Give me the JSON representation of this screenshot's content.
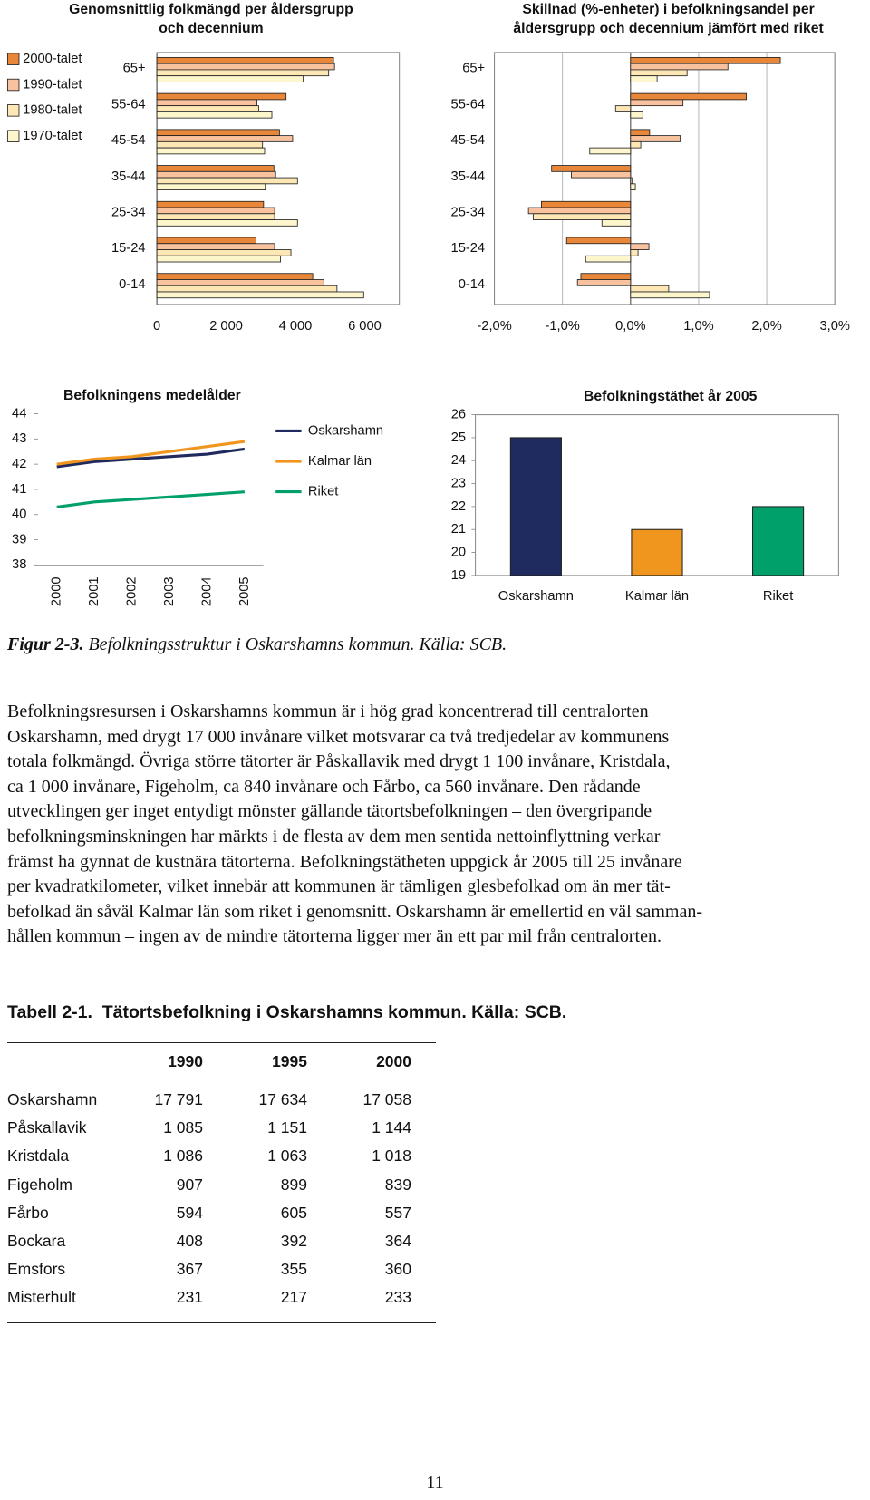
{
  "chart_data": [
    {
      "type": "bar",
      "orientation": "horizontal",
      "title": [
        "Genomsnittlig folkmängd per åldersgrupp",
        "och decennium"
      ],
      "categories": [
        "65+",
        "55-64",
        "45-54",
        "35-44",
        "25-34",
        "15-24",
        "0-14"
      ],
      "series": [
        {
          "name": "2000-talet",
          "color": "#e8873a",
          "values": [
            5100,
            3730,
            3540,
            3380,
            3080,
            2860,
            4500
          ]
        },
        {
          "name": "1990-talet",
          "color": "#f8c29e",
          "values": [
            5130,
            2890,
            3920,
            3430,
            3400,
            3400,
            4820
          ]
        },
        {
          "name": "1980-talet",
          "color": "#fde7b5",
          "values": [
            4960,
            2940,
            3050,
            4060,
            3400,
            3870,
            5200
          ]
        },
        {
          "name": "1970-talet",
          "color": "#fdf5cc",
          "values": [
            4220,
            3320,
            3110,
            3130,
            4060,
            3570,
            5970
          ]
        }
      ],
      "xlim": [
        0,
        7000
      ],
      "xticks": [
        0,
        {
          "value": 2000,
          "label": "2 000"
        },
        {
          "value": 4000,
          "label": "4 000"
        },
        {
          "value": 6000,
          "label": "6 000"
        }
      ],
      "grid": false,
      "legend": "left"
    },
    {
      "type": "bar",
      "orientation": "horizontal",
      "title": [
        "Skillnad (%-enheter) i befolkningsandel per",
        "åldersgrupp och decennium jämfört med riket"
      ],
      "categories": [
        "65+",
        "55-64",
        "45-54",
        "35-44",
        "25-34",
        "15-24",
        "0-14"
      ],
      "series": [
        {
          "color": "#e8873a",
          "values": [
            2.2,
            1.7,
            0.28,
            -1.16,
            -1.31,
            -0.94,
            -0.73
          ]
        },
        {
          "color": "#f8c29e",
          "values": [
            1.43,
            0.77,
            0.73,
            -0.87,
            -1.5,
            0.27,
            -0.78
          ]
        },
        {
          "color": "#fde7b5",
          "values": [
            0.83,
            -0.22,
            0.15,
            0.02,
            -1.43,
            0.11,
            0.56
          ]
        },
        {
          "color": "#fdf5cc",
          "values": [
            0.39,
            0.18,
            -0.6,
            0.07,
            -0.42,
            -0.66,
            1.16
          ]
        }
      ],
      "xlim": [
        -2,
        3
      ],
      "xticks": [
        {
          "value": -2,
          "label": "-2,0%"
        },
        {
          "value": -1,
          "label": "-1,0%"
        },
        {
          "value": 0,
          "label": "0,0%"
        },
        {
          "value": 1,
          "label": "1,0%"
        },
        {
          "value": 2,
          "label": "2,0%"
        },
        {
          "value": 3,
          "label": "3,0%"
        }
      ],
      "grid": true
    },
    {
      "type": "line",
      "title": "Befolkningens medelålder",
      "categories": [
        "2000",
        "2001",
        "2002",
        "2003",
        "2004",
        "2005"
      ],
      "series": [
        {
          "name": "Oskarshamn",
          "color": "#1f2a5e",
          "values": [
            41.9,
            42.1,
            42.2,
            42.3,
            42.4,
            42.6
          ]
        },
        {
          "name": "Kalmar län",
          "color": "#f0961f",
          "values": [
            42.0,
            42.2,
            42.3,
            42.5,
            42.7,
            42.9
          ]
        },
        {
          "name": "Riket",
          "color": "#00a06a",
          "values": [
            40.3,
            40.5,
            40.6,
            40.7,
            40.8,
            40.9
          ]
        }
      ],
      "ylim": [
        38,
        44
      ],
      "yticks": [
        38,
        39,
        40,
        41,
        42,
        43,
        44
      ],
      "grid": false,
      "legend": "right"
    },
    {
      "type": "bar",
      "title": "Befolkningstäthet år 2005",
      "categories": [
        "Oskarshamn",
        "Kalmar län",
        "Riket"
      ],
      "values": [
        25,
        21,
        22
      ],
      "colors": [
        "#1f2a5e",
        "#f0961f",
        "#00a06a"
      ],
      "ylim": [
        19,
        26
      ],
      "yticks": [
        19,
        20,
        21,
        22,
        23,
        24,
        25,
        26
      ],
      "grid": false
    }
  ],
  "figure_caption": {
    "label": "Figur 2-3.",
    "text": "Befolkningsstruktur i Oskarshamns kommun. Källa: SCB."
  },
  "paragraph": [
    "Befolkningsresursen i Oskarshamns kommun är i hög grad koncentrerad till centralorten",
    "Oskarshamn, med drygt 17 000 invånare vilket motsvarar ca två tredjedelar av kommunens",
    "totala folkmängd. Övriga större tätorter är Påskallavik med drygt 1 100 invånare, Kristdala,",
    "ca 1 000 invånare, Figeholm, ca 840 invånare och Fårbo, ca 560 invånare. Den rådande",
    "utvecklingen ger inget entydigt mönster gällande tätortsbefolkningen – den övergripande",
    "befolkningsminskningen har märkts i de flesta av dem men sentida nettoinflyttning verkar",
    "främst ha gynnat de kustnära tätorterna. Befolkningstätheten uppgick år 2005 till 25 invånare",
    "per kvadratkilometer, vilket innebär att kommunen är tämligen glesbefolkad om än mer tät-",
    "befolkad än såväl Kalmar län som riket i genomsnitt. Oskarshamn är emellertid en väl samman-",
    "hållen kommun – ingen av de mindre tätorterna ligger mer än ett par mil från centralorten."
  ],
  "table": {
    "title": "Tabell 2-1.  Tätortsbefolkning i Oskarshamns kommun. Källa: SCB.",
    "header": [
      "1990",
      "1995",
      "2000"
    ],
    "rows": [
      [
        "Oskarshamn",
        "17 791",
        "17 634",
        "17 058"
      ],
      [
        "Påskallavik",
        "1 085",
        "1 151",
        "1 144"
      ],
      [
        "Kristdala",
        "1 086",
        "1 063",
        "1 018"
      ],
      [
        "Figeholm",
        "907",
        "899",
        "839"
      ],
      [
        "Fårbo",
        "594",
        "605",
        "557"
      ],
      [
        "Bockara",
        "408",
        "392",
        "364"
      ],
      [
        "Emsfors",
        "367",
        "355",
        "360"
      ],
      [
        "Misterhult",
        "231",
        "217",
        "233"
      ]
    ]
  },
  "page_number": "11"
}
